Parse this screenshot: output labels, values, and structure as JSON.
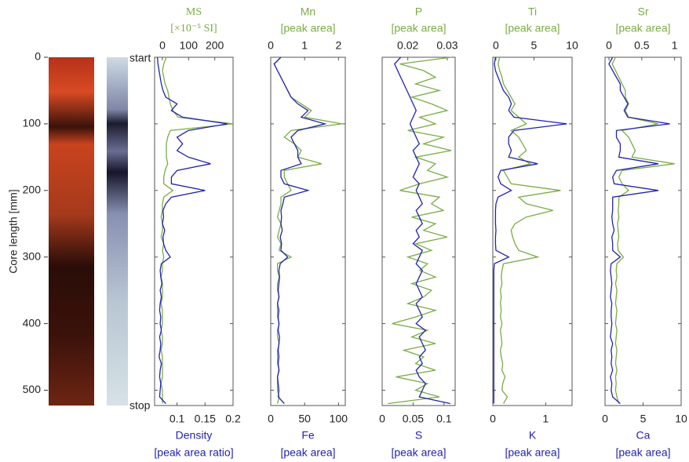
{
  "depth": {
    "label": "Core length [mm]",
    "ylim": [
      0,
      523
    ],
    "yticks": [
      0,
      100,
      200,
      300,
      400,
      500
    ],
    "values": [
      0,
      10,
      20,
      30,
      40,
      50,
      60,
      70,
      80,
      90,
      100,
      110,
      120,
      130,
      140,
      150,
      160,
      170,
      180,
      190,
      200,
      210,
      220,
      230,
      240,
      250,
      260,
      270,
      280,
      290,
      300,
      310,
      320,
      330,
      340,
      350,
      360,
      370,
      380,
      390,
      400,
      410,
      420,
      430,
      440,
      450,
      460,
      470,
      480,
      490,
      500,
      510,
      520
    ]
  },
  "core": {
    "start": "start",
    "stop": "stop"
  },
  "chart_data": [
    {
      "type": "line",
      "x2lim": [
        -30,
        270
      ],
      "x2ticks": [
        0,
        100,
        200
      ],
      "xlim": [
        0.06,
        0.2
      ],
      "xticks": [
        0.1,
        0.15,
        0.2
      ],
      "series": [
        {
          "name": "MS",
          "unit": "[×10⁻⁵ SI]",
          "color": "#7aac45",
          "axis": "x2",
          "values": [
            15,
            5,
            0,
            5,
            10,
            20,
            25,
            30,
            40,
            60,
            270,
            30,
            20,
            15,
            15,
            15,
            20,
            10,
            5,
            5,
            40,
            5,
            0,
            0,
            -5,
            0,
            0,
            -5,
            5,
            0,
            5,
            0,
            0,
            -5,
            0,
            0,
            0,
            -5,
            0,
            0,
            0,
            -5,
            0,
            0,
            -5,
            0,
            0,
            0,
            0,
            -5,
            0,
            0,
            0
          ]
        },
        {
          "name": "Density",
          "unit": "[peak area ratio]",
          "color": "#2323b0",
          "axis": "x",
          "values": [
            0.065,
            0.066,
            0.068,
            0.07,
            0.072,
            0.075,
            0.08,
            0.1,
            0.09,
            0.11,
            0.19,
            0.12,
            0.1,
            0.11,
            0.1,
            0.12,
            0.16,
            0.1,
            0.09,
            0.09,
            0.15,
            0.09,
            0.08,
            0.075,
            0.076,
            0.074,
            0.078,
            0.075,
            0.076,
            0.08,
            0.088,
            0.072,
            0.07,
            0.071,
            0.073,
            0.07,
            0.072,
            0.07,
            0.069,
            0.071,
            0.07,
            0.072,
            0.069,
            0.071,
            0.07,
            0.068,
            0.072,
            0.07,
            0.069,
            0.071,
            0.07,
            0.069,
            0.08
          ]
        }
      ]
    },
    {
      "type": "line",
      "x2lim": [
        0,
        2.2
      ],
      "x2ticks": [
        0,
        1,
        2
      ],
      "xlim": [
        0,
        110
      ],
      "xticks": [
        0,
        50,
        100
      ],
      "series": [
        {
          "name": "Mn",
          "unit": "[peak area]",
          "color": "#7aac45",
          "axis": "x2",
          "values": [
            0.3,
            0.1,
            0.2,
            0.3,
            0.4,
            0.5,
            0.6,
            0.9,
            1.2,
            1.0,
            2.1,
            0.6,
            0.4,
            0.7,
            0.9,
            0.8,
            1.5,
            0.4,
            0.4,
            0.5,
            0.6,
            0.3,
            0.3,
            0.25,
            0.2,
            0.3,
            0.25,
            0.2,
            0.3,
            0.25,
            0.6,
            0.2,
            0.2,
            0.25,
            0.2,
            0.2,
            0.25,
            0.2,
            0.2,
            0.2,
            0.25,
            0.2,
            0.2,
            0.25,
            0.2,
            0.2,
            0.2,
            0.25,
            0.2,
            0.2,
            0.2,
            0.25,
            0.2
          ]
        },
        {
          "name": "Fe",
          "unit": "[peak area]",
          "color": "#2323b0",
          "axis": "x",
          "values": [
            15,
            5,
            10,
            15,
            20,
            25,
            30,
            40,
            55,
            45,
            80,
            40,
            30,
            35,
            40,
            40,
            45,
            15,
            15,
            20,
            55,
            20,
            18,
            15,
            16,
            15,
            17,
            14,
            16,
            15,
            25,
            14,
            12,
            13,
            12,
            11,
            12,
            10,
            12,
            11,
            12,
            11,
            13,
            12,
            11,
            12,
            11,
            12,
            10,
            11,
            12,
            11,
            20
          ]
        }
      ]
    },
    {
      "type": "line",
      "x2lim": [
        0.0135,
        0.032
      ],
      "x2ticks": [
        0.02,
        0.03
      ],
      "xlim": [
        0,
        0.118
      ],
      "xticks": [
        0,
        0.05,
        0.1
      ],
      "series": [
        {
          "name": "P",
          "unit": "[peak area]",
          "color": "#7aac45",
          "axis": "x2",
          "values": [
            0.031,
            0.018,
            0.024,
            0.027,
            0.022,
            0.028,
            0.021,
            0.026,
            0.03,
            0.023,
            0.027,
            0.02,
            0.029,
            0.024,
            0.031,
            0.022,
            0.027,
            0.025,
            0.03,
            0.023,
            0.018,
            0.028,
            0.026,
            0.029,
            0.021,
            0.027,
            0.024,
            0.03,
            0.022,
            0.026,
            0.02,
            0.025,
            0.023,
            0.027,
            0.021,
            0.026,
            0.024,
            0.02,
            0.027,
            0.022,
            0.016,
            0.025,
            0.021,
            0.027,
            0.019,
            0.024,
            0.022,
            0.027,
            0.017,
            0.025,
            0.022,
            0.028,
            0.015
          ]
        },
        {
          "name": "S",
          "unit": "[peak area]",
          "color": "#2323b0",
          "axis": "x",
          "values": [
            0.03,
            0.02,
            0.025,
            0.03,
            0.035,
            0.04,
            0.045,
            0.05,
            0.055,
            0.05,
            0.045,
            0.05,
            0.055,
            0.06,
            0.05,
            0.055,
            0.06,
            0.055,
            0.05,
            0.06,
            0.055,
            0.06,
            0.065,
            0.055,
            0.06,
            0.065,
            0.055,
            0.06,
            0.05,
            0.065,
            0.06,
            0.055,
            0.065,
            0.06,
            0.055,
            0.06,
            0.065,
            0.055,
            0.06,
            0.065,
            0.055,
            0.07,
            0.06,
            0.065,
            0.07,
            0.06,
            0.065,
            0.055,
            0.06,
            0.07,
            0.065,
            0.06,
            0.11
          ]
        }
      ]
    },
    {
      "type": "line",
      "x2lim": [
        -0.4,
        10
      ],
      "x2ticks": [
        0,
        5,
        10
      ],
      "xlim": [
        0,
        1.5
      ],
      "xticks": [
        0,
        1
      ],
      "series": [
        {
          "name": "Ti",
          "unit": "[peak area]",
          "color": "#7aac45",
          "axis": "x2",
          "values": [
            0.5,
            0.3,
            0.5,
            0.8,
            1,
            1.5,
            2,
            2.5,
            2,
            3,
            4,
            2,
            3,
            3.5,
            4,
            3,
            4.5,
            1,
            1.5,
            2,
            8.5,
            3,
            4,
            7.5,
            4,
            2.5,
            2,
            2.2,
            2.5,
            3,
            5.5,
            1,
            0.8,
            0.7,
            0.8,
            0.6,
            0.7,
            0.6,
            0.7,
            0.6,
            0.8,
            0.6,
            0.7,
            0.8,
            0.6,
            0.7,
            0.9,
            0.8,
            1.2,
            0.9,
            0.8,
            1.5,
            1
          ]
        },
        {
          "name": "K",
          "unit": "[peak area]",
          "color": "#2323b0",
          "axis": "x",
          "values": [
            0.05,
            0.03,
            0.05,
            0.1,
            0.15,
            0.2,
            0.3,
            0.35,
            0.3,
            0.4,
            1.4,
            0.4,
            0.3,
            0.3,
            0.35,
            0.3,
            0.85,
            0.15,
            0.1,
            0.15,
            0.35,
            0.1,
            0.06,
            0.05,
            0.05,
            0.05,
            0.06,
            0.05,
            0.05,
            0.06,
            0.3,
            0.03,
            0.02,
            0.02,
            0.02,
            0.02,
            0.02,
            0.02,
            0.02,
            0.02,
            0.02,
            0.02,
            0.02,
            0.02,
            0.02,
            0.02,
            0.02,
            0.02,
            0.02,
            0.02,
            0.02,
            0.02,
            0.02
          ]
        }
      ]
    },
    {
      "type": "line",
      "x2lim": [
        -0.06,
        1.1
      ],
      "x2ticks": [
        0,
        0.5,
        1
      ],
      "xlim": [
        0,
        10
      ],
      "xticks": [
        0,
        5,
        10
      ],
      "series": [
        {
          "name": "Sr",
          "unit": "[peak area]",
          "color": "#7aac45",
          "axis": "x2",
          "values": [
            0.1,
            0.05,
            0.1,
            0.15,
            0.2,
            0.25,
            0.25,
            0.3,
            0.25,
            0.3,
            0.75,
            0.2,
            0.3,
            0.35,
            0.4,
            0.35,
            1.0,
            0.2,
            0.15,
            0.2,
            0.3,
            0.15,
            0.15,
            0.14,
            0.15,
            0.13,
            0.14,
            0.15,
            0.13,
            0.14,
            0.22,
            0.12,
            0.11,
            0.12,
            0.1,
            0.12,
            0.11,
            0.1,
            0.12,
            0.11,
            0.1,
            0.12,
            0.11,
            0.1,
            0.12,
            0.11,
            0.1,
            0.12,
            0.1,
            0.11,
            0.1,
            0.12,
            0.15
          ]
        },
        {
          "name": "Ca",
          "unit": "[peak area]",
          "color": "#2323b0",
          "axis": "x",
          "values": [
            1,
            0.5,
            1,
            1.5,
            2,
            2,
            2.5,
            3,
            2.5,
            3,
            8.5,
            1.5,
            1.5,
            2,
            2,
            1.8,
            7,
            1.5,
            1,
            1.2,
            7,
            1,
            1,
            1,
            0.9,
            1,
            1.2,
            0.9,
            1,
            1,
            2,
            0.8,
            0.7,
            0.8,
            0.9,
            0.8,
            0.7,
            0.9,
            0.8,
            0.8,
            0.9,
            0.8,
            0.7,
            1,
            0.8,
            0.9,
            0.8,
            1,
            0.7,
            0.9,
            0.8,
            1,
            2
          ]
        }
      ]
    }
  ]
}
